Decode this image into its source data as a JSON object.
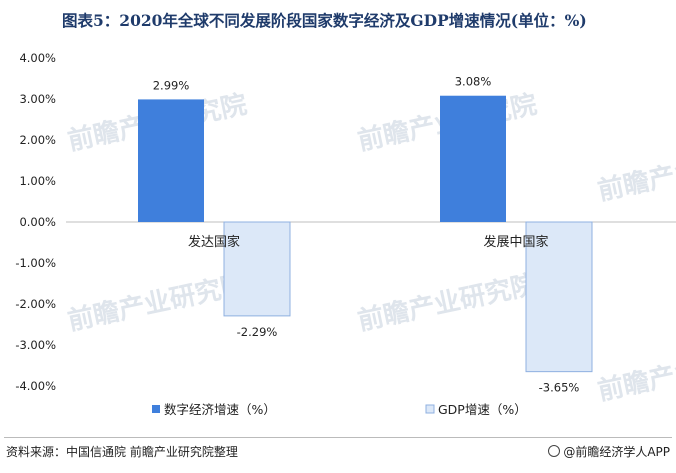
{
  "title": "图表5：2020年全球不同发展阶段国家数字经济及GDP增速情况(单位：%)",
  "source": "资料来源：中国信通院 前瞻产业研究院整理",
  "brand": "@前瞻经济学人APP",
  "watermark": "前瞻产业研究院",
  "colors": {
    "digital_economy": "#3f7fdc",
    "gdp_fill": "#dce8f8",
    "gdp_stroke": "#8fb0e0"
  },
  "chart_data": {
    "type": "bar",
    "categories": [
      "发达国家",
      "发展中国家"
    ],
    "series": [
      {
        "name": "数字经济增速（%）",
        "values": [
          2.99,
          3.08
        ],
        "labels": [
          "2.99%",
          "3.08%"
        ]
      },
      {
        "name": "GDP增速（%）",
        "values": [
          -2.29,
          -3.65
        ],
        "labels": [
          "-2.29%",
          "-3.65%"
        ]
      }
    ],
    "ylim": [
      -4,
      4
    ],
    "yticks": [
      4,
      3,
      2,
      1,
      0,
      -1,
      -2,
      -3,
      -4
    ],
    "ytick_labels": [
      "4.00%",
      "3.00%",
      "2.00%",
      "1.00%",
      "0.00%",
      "-1.00%",
      "-2.00%",
      "-3.00%",
      "-4.00%"
    ],
    "legend_position": "bottom",
    "grid": false
  }
}
